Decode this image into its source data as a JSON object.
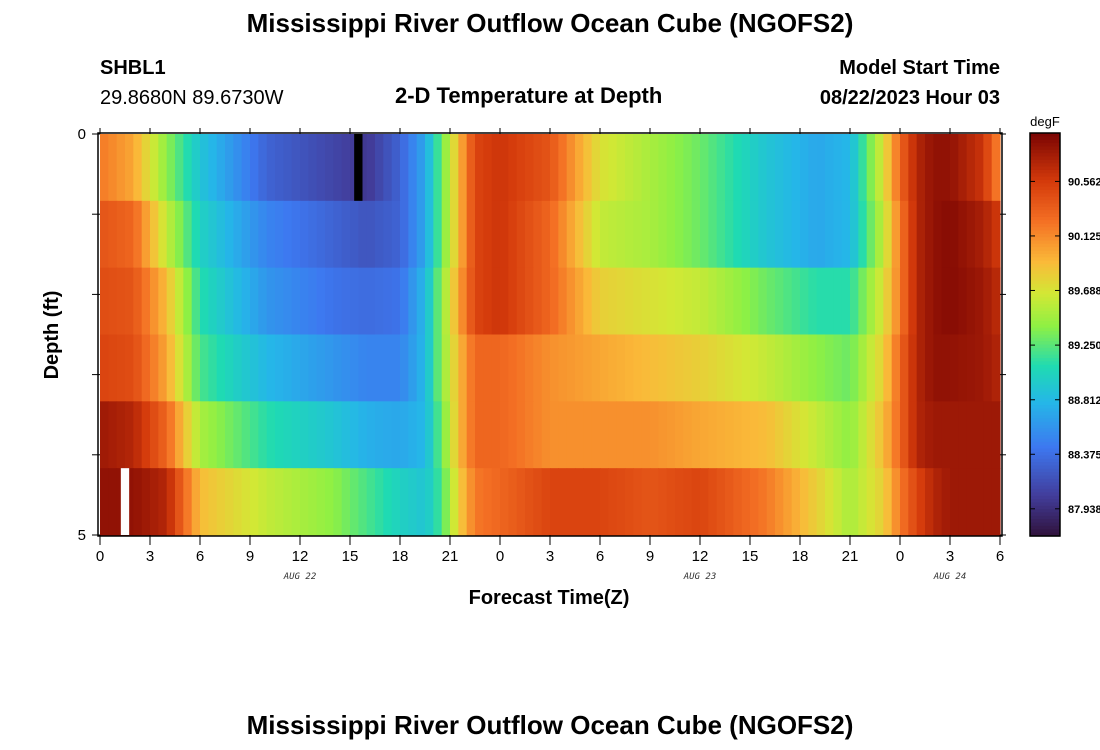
{
  "header": {
    "title": "Mississippi River Outflow Ocean Cube (NGOFS2)",
    "station_id": "SHBL1",
    "coordinates": "29.8680N  89.6730W",
    "subtitle": "2-D Temperature at Depth",
    "start_label": "Model Start Time",
    "start_value": "08/22/2023 Hour 03"
  },
  "footer": {
    "title": "Mississippi River Outflow Ocean Cube (NGOFS2)"
  },
  "chart_data": {
    "type": "heatmap",
    "title": "2-D Temperature at Depth",
    "xlabel": "Forecast Time(Z)",
    "ylabel": "Depth (ft)",
    "colorbar_unit": "degF",
    "colorbar_ticks": [
      "87.938",
      "88.375",
      "88.812",
      "89.250",
      "89.688",
      "90.125",
      "90.562"
    ],
    "colorbar_range": [
      87.72,
      90.95
    ],
    "x_range_hours": [
      0,
      54
    ],
    "x_tick_labels": [
      "0",
      "3",
      "6",
      "9",
      "12",
      "15",
      "18",
      "21",
      "0",
      "3",
      "6",
      "9",
      "12",
      "15",
      "18",
      "21",
      "0",
      "3",
      "6"
    ],
    "date_labels": [
      {
        "text": "AUG 22",
        "hour": 12
      },
      {
        "text": "AUG 23",
        "hour": 36
      },
      {
        "text": "AUG 24",
        "hour": 51
      }
    ],
    "y_range": [
      0,
      5
    ],
    "y_tick_labels": [
      "0",
      "5"
    ],
    "depth_layers": [
      0,
      1,
      2,
      3,
      4,
      5
    ],
    "key_times": [
      0,
      2,
      4,
      6,
      10,
      14,
      16,
      18,
      19.5,
      20.5,
      21.5,
      22.5,
      24,
      27,
      30,
      33,
      36,
      40,
      43,
      45,
      47,
      48,
      49,
      50,
      51,
      53,
      54
    ],
    "layer_temperatures": [
      [
        90.2,
        90.0,
        89.4,
        88.9,
        88.3,
        88.1,
        88.0,
        88.3,
        88.7,
        89.3,
        89.9,
        90.5,
        90.6,
        90.4,
        89.7,
        89.5,
        89.3,
        88.9,
        88.7,
        88.8,
        89.7,
        90.3,
        90.7,
        90.85,
        90.85,
        90.6,
        90.1
      ],
      [
        90.4,
        90.3,
        89.6,
        89.0,
        88.5,
        88.3,
        88.2,
        88.3,
        88.7,
        89.3,
        89.9,
        90.5,
        90.6,
        90.3,
        89.6,
        89.5,
        89.3,
        88.9,
        88.7,
        88.8,
        89.6,
        90.2,
        90.7,
        90.85,
        90.9,
        90.75,
        90.55
      ],
      [
        90.45,
        90.4,
        89.9,
        89.1,
        88.6,
        88.4,
        88.35,
        88.4,
        88.8,
        89.4,
        90.0,
        90.5,
        90.6,
        90.3,
        89.8,
        89.7,
        89.6,
        89.3,
        89.1,
        89.1,
        89.7,
        90.2,
        90.7,
        90.85,
        90.9,
        90.8,
        90.65
      ],
      [
        90.5,
        90.45,
        90.0,
        89.2,
        88.8,
        88.6,
        88.5,
        88.5,
        88.8,
        89.4,
        89.9,
        90.3,
        90.3,
        90.1,
        90.0,
        89.9,
        89.8,
        89.6,
        89.4,
        89.3,
        89.8,
        90.3,
        90.7,
        90.85,
        90.85,
        90.8,
        90.7
      ],
      [
        90.8,
        90.7,
        90.3,
        89.5,
        89.1,
        88.9,
        88.75,
        88.7,
        88.8,
        89.3,
        89.9,
        90.3,
        90.3,
        90.1,
        90.1,
        90.1,
        90.0,
        89.9,
        89.6,
        89.4,
        89.9,
        90.3,
        90.7,
        90.8,
        90.8,
        90.8,
        90.8
      ],
      [
        90.85,
        90.85,
        90.7,
        89.9,
        89.6,
        89.4,
        89.2,
        89.0,
        88.9,
        89.2,
        89.8,
        90.2,
        90.3,
        90.5,
        90.5,
        90.4,
        90.5,
        90.2,
        89.8,
        89.5,
        89.8,
        90.2,
        90.5,
        90.7,
        90.8,
        90.8,
        90.8
      ]
    ]
  }
}
